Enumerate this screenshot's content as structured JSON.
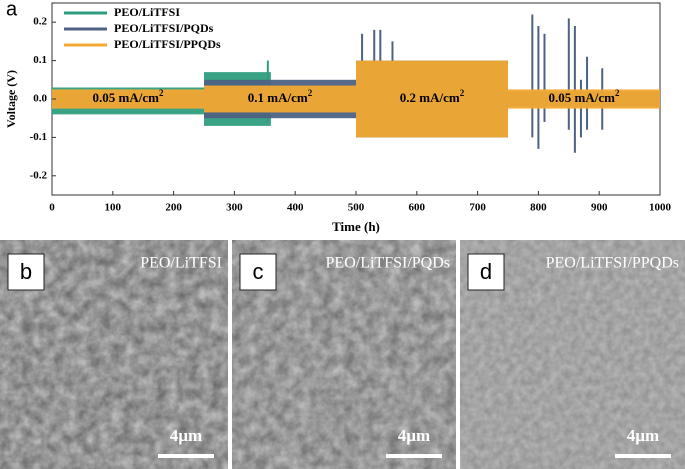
{
  "chart_data": {
    "type": "band",
    "panel_label": "a",
    "x_label": "Time (h)",
    "y_label": "Voltage (V)",
    "xlim": [
      0,
      1000
    ],
    "xticks": [
      0,
      100,
      200,
      300,
      400,
      500,
      600,
      700,
      800,
      900,
      1000
    ],
    "ylim": [
      -0.25,
      0.25
    ],
    "yticks": [
      -0.2,
      -0.1,
      {
        "value": 0,
        "label": "0.0"
      },
      0.1,
      0.2
    ],
    "legend": "upper-left",
    "series": [
      {
        "name": "PEO/LiTFSI",
        "color": "#2f9e80",
        "x_start": [
          0,
          250
        ],
        "x_end": [
          250,
          360
        ],
        "high": [
          0.03,
          0.07
        ],
        "low": [
          -0.04,
          -0.07
        ],
        "spike_x": [
          355
        ],
        "spike_high": [
          0.1
        ],
        "spike_low": [
          -0.06
        ]
      },
      {
        "name": "PEO/LiTFSI/PQDs",
        "color": "#4d6283",
        "x_start": [
          0,
          250,
          500,
          750
        ],
        "x_end": [
          250,
          500,
          750,
          1000
        ],
        "high": [
          0.02,
          0.05,
          0.1,
          0.02
        ],
        "low": [
          -0.02,
          -0.05,
          -0.1,
          -0.02
        ],
        "spike_x": [
          510,
          530,
          540,
          560,
          790,
          800,
          810,
          850,
          860,
          870,
          880,
          905
        ],
        "spike_high": [
          0.17,
          0.18,
          0.18,
          0.15,
          0.22,
          0.19,
          0.17,
          0.21,
          0.19,
          0.05,
          0.11,
          0.08
        ],
        "spike_low": [
          -0.09,
          -0.07,
          -0.1,
          -0.08,
          -0.1,
          -0.13,
          -0.06,
          -0.08,
          -0.14,
          -0.1,
          -0.08,
          -0.08
        ]
      },
      {
        "name": "PEO/LiTFSI/PPQDs",
        "color": "#f2a933",
        "x_start": [
          0,
          250,
          500,
          750
        ],
        "x_end": [
          250,
          500,
          750,
          1000
        ],
        "high": [
          0.025,
          0.035,
          0.1,
          0.025
        ],
        "low": [
          -0.025,
          -0.035,
          -0.1,
          -0.025
        ],
        "spike_x": [],
        "spike_high": [],
        "spike_low": []
      }
    ],
    "current_labels": [
      {
        "text": "0.05 mA/cm",
        "sup": "2"
      },
      {
        "text": "0.1 mA/cm",
        "sup": "2"
      },
      {
        "text": "0.2 mA/cm",
        "sup": "2"
      },
      {
        "text": "0.05 mA/cm",
        "sup": "2"
      }
    ]
  },
  "panels": [
    {
      "letter": "b",
      "title": "PEO/LiTFSI",
      "scale": "4µm"
    },
    {
      "letter": "c",
      "title": "PEO/LiTFSI/PQDs",
      "scale": "4µm"
    },
    {
      "letter": "d",
      "title": "PEO/LiTFSI/PPQDs",
      "scale": "4µm"
    }
  ]
}
